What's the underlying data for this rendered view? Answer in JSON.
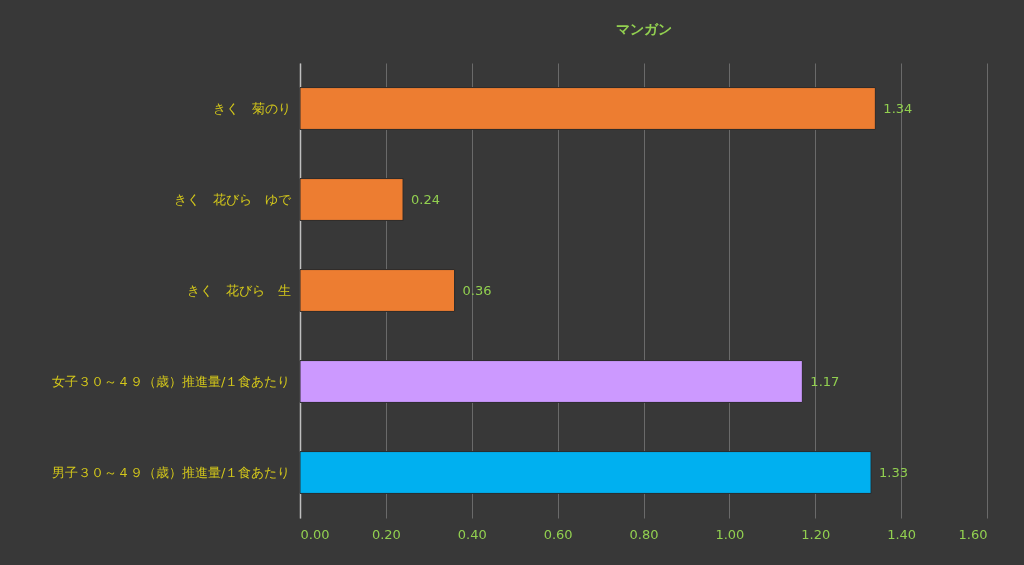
{
  "chart_data": {
    "type": "bar",
    "orientation": "horizontal",
    "title": "マンガン",
    "categories": [
      "きく　菊のり",
      "きく　花びら　ゆで",
      "きく　花びら　生",
      "女子３０～４９（歳）推進量/１食あたり",
      "男子３０～４９（歳）推進量/１食あたり"
    ],
    "values": [
      1.34,
      0.24,
      0.36,
      1.17,
      1.33
    ],
    "colors": [
      "#ed7d31",
      "#ed7d31",
      "#ed7d31",
      "#cc99ff",
      "#00b0f0"
    ],
    "xlim": [
      0,
      1.6
    ],
    "xticks": [
      {
        "value": 0,
        "label": "0.00"
      },
      {
        "value": 0.2,
        "label": "0.20"
      },
      {
        "value": 0.4,
        "label": "0.40"
      },
      {
        "value": 0.6,
        "label": "0.60"
      },
      {
        "value": 0.8,
        "label": "0.80"
      },
      {
        "value": 1,
        "label": "1.00"
      },
      {
        "value": 1.2,
        "label": "1.20"
      },
      {
        "value": 1.4,
        "label": "1.40"
      },
      {
        "value": 1.6,
        "label": "1.60"
      }
    ],
    "grid": "x",
    "data_labels": true
  }
}
